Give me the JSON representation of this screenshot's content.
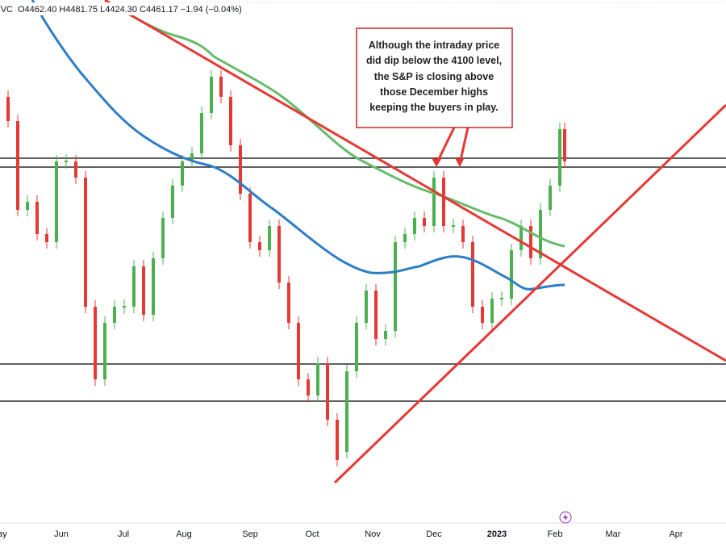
{
  "header": {
    "symbol": "TVC",
    "ohlc": "O4462.40 H4481.75 L4424.30 C4461.17 −1.94 (−0.04%)"
  },
  "annotation": {
    "lines": [
      "Although the intraday price",
      "did dip below the 4100 level,",
      "the S&P is closing above",
      "those December highs",
      "keeping the buyers in play."
    ]
  },
  "x_axis": {
    "labels": [
      "May",
      "Jun",
      "Jul",
      "Aug",
      "Sep",
      "Oct",
      "Nov",
      "Dec",
      "2023",
      "Feb",
      "Mar",
      "Apr"
    ]
  }
}
